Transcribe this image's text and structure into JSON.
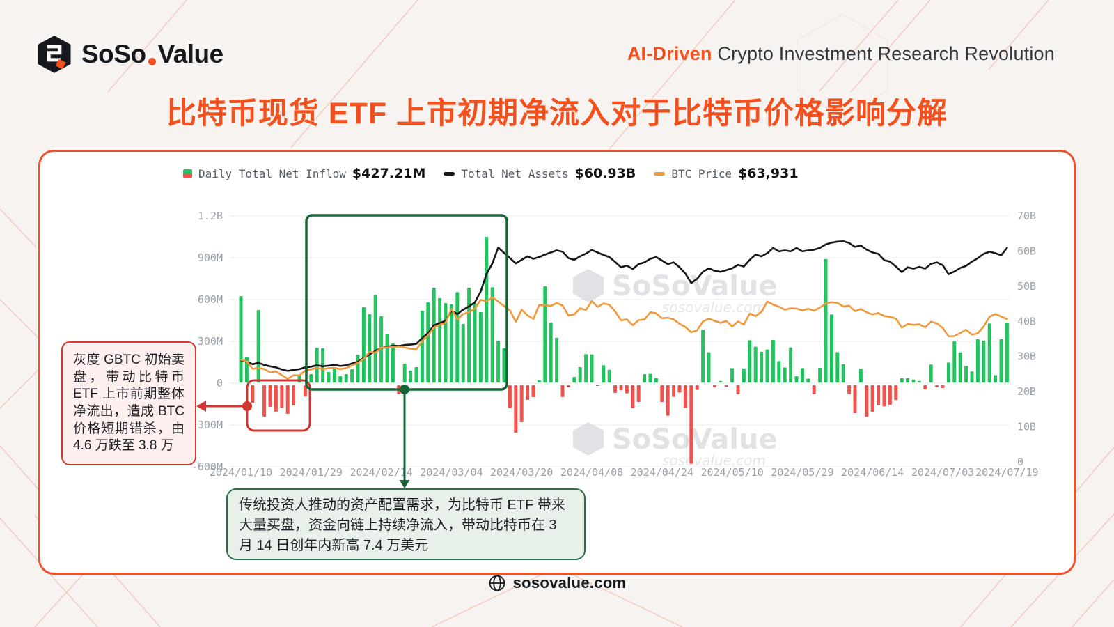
{
  "header": {
    "brand_so": "SoSo",
    "brand_value": "Value",
    "tagline_highlight": "AI-Driven",
    "tagline_rest": " Crypto Investment Research Revolution"
  },
  "title": "比特币现货 ETF 上市初期净流入对于比特币价格影响分解",
  "legend": {
    "inflow_label": "Daily Total Net Inflow",
    "inflow_value": "$427.21M",
    "assets_label": "Total Net Assets",
    "assets_value": "$60.93B",
    "price_label": "BTC Price",
    "price_value": "$63,931"
  },
  "annotations": {
    "gbtc": "灰度 GBTC 初始卖盘，带动比特币 ETF 上市前期整体净流出，造成 BTC 价格短期错杀，由 4.6 万跌至 3.8 万",
    "inflow": "传统投资人推动的资产配置需求，为比特币 ETF 带来大量买盘，资金向链上持续净流入，带动比特币在 3 月 14 日创年内新高 7.4 万美元"
  },
  "watermark": {
    "name": "SoSoValue",
    "domain": "sosovalue.com"
  },
  "footer": {
    "site": "sosovalue.com"
  },
  "colors": {
    "accent": "#f4501d",
    "card_border": "#e8532e",
    "bar_positive": "#21c45e",
    "bar_negative": "#f0524d",
    "assets_line": "#15181c",
    "price_line": "#f0993c",
    "highlight_green": "#166534",
    "highlight_red": "#cf3732"
  },
  "chart_data": {
    "type": "bar+line",
    "title": "Bitcoin Spot ETF flows vs BTC price",
    "legend_position": "top",
    "grid": true,
    "categories": [
      "01/10",
      "01/11",
      "01/12",
      "01/16",
      "01/17",
      "01/18",
      "01/19",
      "01/22",
      "01/23",
      "01/24",
      "01/25",
      "01/26",
      "01/29",
      "01/30",
      "01/31",
      "02/01",
      "02/02",
      "02/05",
      "02/06",
      "02/07",
      "02/08",
      "02/09",
      "02/12",
      "02/13",
      "02/14",
      "02/15",
      "02/16",
      "02/20",
      "02/21",
      "02/22",
      "02/23",
      "02/26",
      "02/27",
      "02/28",
      "02/29",
      "03/01",
      "03/04",
      "03/05",
      "03/06",
      "03/07",
      "03/08",
      "03/11",
      "03/12",
      "03/13",
      "03/14",
      "03/15",
      "03/18",
      "03/19",
      "03/20",
      "03/21",
      "03/22",
      "03/25",
      "03/26",
      "03/27",
      "03/28",
      "04/01",
      "04/02",
      "04/03",
      "04/04",
      "04/05",
      "04/08",
      "04/09",
      "04/10",
      "04/11",
      "04/12",
      "04/15",
      "04/16",
      "04/17",
      "04/18",
      "04/19",
      "04/22",
      "04/23",
      "04/24",
      "04/25",
      "04/26",
      "04/29",
      "04/30",
      "05/01",
      "05/02",
      "05/03",
      "05/06",
      "05/07",
      "05/08",
      "05/09",
      "05/10",
      "05/13",
      "05/14",
      "05/15",
      "05/16",
      "05/17",
      "05/20",
      "05/21",
      "05/22",
      "05/23",
      "05/24",
      "05/28",
      "05/29",
      "05/30",
      "05/31",
      "06/03",
      "06/04",
      "06/05",
      "06/06",
      "06/07",
      "06/10",
      "06/11",
      "06/12",
      "06/13",
      "06/14",
      "06/17",
      "06/18",
      "06/20",
      "06/21",
      "06/24",
      "06/25",
      "06/26",
      "06/27",
      "06/28",
      "07/01",
      "07/02",
      "07/03",
      "07/05",
      "07/08",
      "07/09",
      "07/10",
      "07/11",
      "07/12",
      "07/15",
      "07/16",
      "07/17",
      "07/18",
      "07/19"
    ],
    "series": [
      {
        "name": "Daily Total Net Inflow",
        "type": "bar",
        "unit": "USD millions",
        "axis": "left",
        "values": [
          620,
          185,
          -125,
          520,
          -225,
          -155,
          -190,
          -160,
          -205,
          -145,
          50,
          -80,
          60,
          250,
          245,
          75,
          110,
          45,
          60,
          95,
          200,
          540,
          490,
          630,
          475,
          350,
          280,
          -65,
          135,
          85,
          110,
          515,
          575,
          680,
          605,
          570,
          562,
          648,
          420,
          680,
          570,
          505,
          1045,
          683,
          300,
          245,
          -165,
          -340,
          -265,
          -105,
          -85,
          15,
          690,
          430,
          320,
          -85,
          -15,
          40,
          110,
          203,
          202,
          -5,
          124,
          91,
          -55,
          -36,
          -58,
          -165,
          -120,
          60,
          62,
          32,
          -120,
          -218,
          -84,
          -52,
          -162,
          -563,
          -34,
          378,
          217,
          -16,
          11,
          -11,
          103,
          -65,
          101,
          303,
          257,
          221,
          237,
          305,
          154,
          108,
          252,
          45,
          103,
          28,
          -65,
          105,
          886,
          488,
          218,
          131,
          -65,
          -200,
          100,
          -226,
          -190,
          -145,
          -152,
          -140,
          -106,
          31,
          31,
          21,
          11,
          -30,
          129,
          -13,
          -20,
          143,
          295,
          216,
          118,
          79,
          310,
          301,
          423,
          53,
          310,
          427
        ]
      },
      {
        "name": "Total Net Assets",
        "type": "line",
        "unit": "USD billions",
        "axis": "right",
        "values": [
          28.9,
          28.5,
          27.8,
          28.2,
          27.6,
          27.2,
          26.9,
          26.3,
          25.9,
          26.2,
          26.4,
          26.9,
          27.1,
          27.5,
          27.2,
          27.4,
          27.6,
          27.3,
          27.5,
          28.0,
          28.5,
          29.6,
          30.6,
          31.6,
          32.4,
          32.8,
          33.1,
          33.0,
          33.3,
          33.4,
          33.6,
          35.3,
          36.6,
          38.9,
          39.5,
          40.2,
          43.0,
          42.1,
          43.3,
          44.3,
          45.4,
          48.5,
          53.5,
          56.5,
          61.0,
          59.5,
          58.0,
          56.5,
          57.5,
          58.5,
          57.8,
          58.3,
          59.0,
          59.6,
          60.2,
          59.8,
          58.0,
          57.5,
          58.5,
          59.3,
          60.3,
          59.6,
          58.9,
          58.3,
          56.9,
          55.4,
          55.9,
          54.9,
          56.3,
          56.8,
          57.8,
          58.3,
          57.3,
          56.3,
          56.8,
          55.4,
          53.6,
          50.9,
          52.1,
          54.1,
          55.1,
          54.4,
          54.1,
          54.6,
          55.1,
          56.1,
          55.6,
          57.5,
          59.0,
          58.5,
          59.4,
          60.9,
          59.9,
          60.2,
          59.9,
          60.9,
          59.9,
          60.2,
          60.4,
          60.9,
          61.9,
          62.4,
          62.7,
          62.8,
          62.3,
          61.2,
          61.6,
          60.4,
          59.6,
          59.2,
          57.4,
          57.0,
          55.6,
          54.0,
          55.4,
          55.0,
          55.5,
          55.0,
          56.4,
          56.8,
          56.0,
          53.4,
          54.2,
          55.2,
          55.8,
          57.0,
          58.0,
          59.2,
          59.8,
          59.4,
          58.8,
          60.93
        ]
      },
      {
        "name": "BTC Price",
        "type": "line",
        "unit": "USD",
        "axis": "hidden",
        "values": [
          46630,
          46000,
          42800,
          43200,
          42700,
          41300,
          41700,
          40100,
          38600,
          40100,
          40000,
          42000,
          42600,
          43300,
          42600,
          43100,
          43200,
          42700,
          43100,
          44300,
          45300,
          47100,
          49900,
          49700,
          51800,
          51900,
          52100,
          52300,
          51900,
          51300,
          51100,
          54500,
          57100,
          60400,
          61500,
          62400,
          68300,
          63800,
          66100,
          66900,
          68300,
          72100,
          71500,
          73100,
          71400,
          69500,
          67600,
          62800,
          67900,
          65500,
          64000,
          69900,
          69900,
          69500,
          70800,
          69700,
          65500,
          65900,
          68500,
          67800,
          71600,
          69100,
          70600,
          70000,
          67200,
          63400,
          63800,
          61300,
          63500,
          63800,
          66800,
          66400,
          64300,
          64500,
          63800,
          61900,
          60600,
          58300,
          59100,
          62900,
          64100,
          63200,
          62300,
          63100,
          60800,
          62900,
          61600,
          66300,
          65200,
          67000,
          71400,
          70100,
          69200,
          67900,
          68500,
          68400,
          67600,
          68300,
          67500,
          68800,
          70600,
          71100,
          70800,
          69300,
          69600,
          67300,
          68200,
          66800,
          65900,
          66500,
          65200,
          64900,
          64100,
          60300,
          61800,
          61500,
          61700,
          60400,
          62800,
          62100,
          60200,
          56600,
          56700,
          58000,
          59400,
          57300,
          57900,
          60800,
          64900,
          66100,
          65000,
          63931
        ]
      }
    ],
    "left_axis": {
      "labels": [
        "1.2B",
        "900M",
        "600M",
        "300M",
        "0",
        "-300M",
        "-600M"
      ],
      "values_m": [
        1200,
        900,
        600,
        300,
        0,
        -300,
        -600
      ]
    },
    "right_axis": {
      "labels": [
        "70B",
        "60B",
        "50B",
        "40B",
        "30B",
        "20B",
        "10B",
        "0"
      ],
      "values_b": [
        70,
        60,
        50,
        40,
        30,
        20,
        10,
        0
      ]
    },
    "x_ticks": [
      {
        "label": "2024/01/10",
        "index": 0
      },
      {
        "label": "2024/01/29",
        "index": 12
      },
      {
        "label": "2024/02/14",
        "index": 24
      },
      {
        "label": "2024/03/04",
        "index": 36
      },
      {
        "label": "2024/03/20",
        "index": 48
      },
      {
        "label": "2024/04/08",
        "index": 60
      },
      {
        "label": "2024/04/24",
        "index": 72
      },
      {
        "label": "2024/05/10",
        "index": 84
      },
      {
        "label": "2024/05/29",
        "index": 96
      },
      {
        "label": "2024/06/14",
        "index": 108
      },
      {
        "label": "2024/07/03",
        "index": 120
      },
      {
        "label": "2024/07/19",
        "index": 131
      }
    ],
    "highlights": {
      "red_box_period": "2024/01/12 - 2024/01/26",
      "green_box_period": "2024/01/26 - 2024/03/15"
    }
  }
}
